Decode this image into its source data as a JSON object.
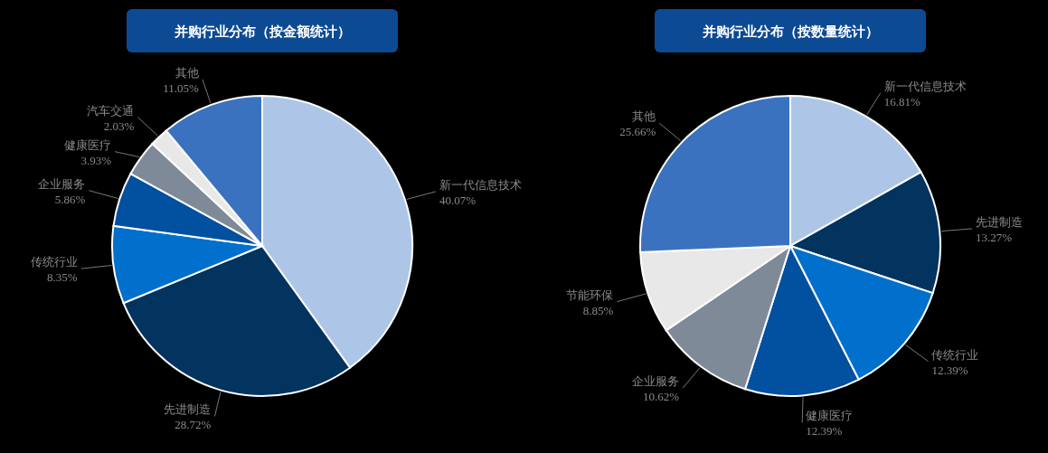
{
  "chart_data": [
    {
      "type": "pie",
      "title": "并购行业分布（按金额统计）",
      "categories": [
        "新一代信息技术",
        "先进制造",
        "传统行业",
        "企业服务",
        "健康医疗",
        "汽车交通",
        "其他"
      ],
      "values": [
        40.07,
        28.72,
        8.35,
        5.86,
        3.93,
        2.03,
        11.05
      ],
      "colors": [
        "#adc6e8",
        "#03335f",
        "#0070cc",
        "#0250a0",
        "#7f8a99",
        "#e8e8e8",
        "#3a72c0"
      ],
      "value_labels": [
        "40.07%",
        "28.72%",
        "8.35%",
        "5.86%",
        "3.93%",
        "2.03%",
        "11.05%"
      ]
    },
    {
      "type": "pie",
      "title": "并购行业分布（按数量统计）",
      "categories": [
        "新一代信息技术",
        "先进制造",
        "传统行业",
        "健康医疗",
        "企业服务",
        "节能环保",
        "其他"
      ],
      "values": [
        16.81,
        13.27,
        12.39,
        12.39,
        10.62,
        8.85,
        25.66
      ],
      "colors": [
        "#adc6e8",
        "#03335f",
        "#0070cc",
        "#0250a0",
        "#7f8a99",
        "#e8e8e8",
        "#3a72c0"
      ],
      "value_labels": [
        "16.81%",
        "13.27%",
        "12.39%",
        "12.39%",
        "10.62%",
        "8.85%",
        "25.66%"
      ]
    }
  ]
}
